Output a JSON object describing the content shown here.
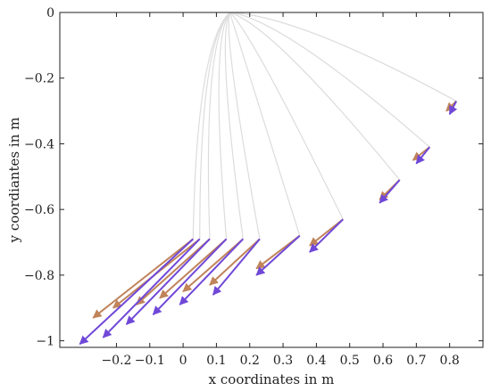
{
  "chart_data": {
    "type": "line",
    "title": "",
    "xlabel": "x coordinates in m",
    "ylabel": "y coordiantes in m",
    "xlim": [
      -0.37,
      0.9
    ],
    "ylim": [
      -1.02,
      0.0
    ],
    "xticks": [
      -0.2,
      -0.1,
      0,
      0.1,
      0.2,
      0.3,
      0.4,
      0.5,
      0.6,
      0.7,
      0.8
    ],
    "xtick_labels": [
      "−0.2",
      "−0.1",
      "0",
      "0.1",
      "0.2",
      "0.3",
      "0.4",
      "0.5",
      "0.6",
      "0.7",
      "0.8"
    ],
    "yticks": [
      0,
      -0.2,
      -0.4,
      -0.6,
      -0.8,
      -1
    ],
    "ytick_labels": [
      "0",
      "−0.2",
      "−0.4",
      "−0.6",
      "−0.8",
      "−1"
    ],
    "grid": false,
    "colors": {
      "curve": "#dcdcdc",
      "arrow_orange": "#c0835a",
      "arrow_purple": "#7048d8",
      "axis": "#222222"
    },
    "curves": [
      {
        "tip": [
          0.82,
          -0.27
        ],
        "control": [
          0.35,
          -0.01
        ],
        "orange_tail": [
          0.79,
          -0.3
        ],
        "purple_tail": [
          0.8,
          -0.31
        ]
      },
      {
        "tip": [
          0.74,
          -0.41
        ],
        "control": [
          0.3,
          -0.02
        ],
        "orange_tail": [
          0.69,
          -0.45
        ],
        "purple_tail": [
          0.7,
          -0.46
        ]
      },
      {
        "tip": [
          0.65,
          -0.51
        ],
        "control": [
          0.27,
          -0.04
        ],
        "orange_tail": [
          0.59,
          -0.57
        ],
        "purple_tail": [
          0.59,
          -0.58
        ]
      },
      {
        "tip": [
          0.48,
          -0.63
        ],
        "control": [
          0.2,
          -0.05
        ],
        "orange_tail": [
          0.38,
          -0.71
        ],
        "purple_tail": [
          0.38,
          -0.73
        ]
      },
      {
        "tip": [
          0.35,
          -0.68
        ],
        "control": [
          0.16,
          -0.06
        ],
        "orange_tail": [
          0.22,
          -0.78
        ],
        "purple_tail": [
          0.22,
          -0.8
        ]
      },
      {
        "tip": [
          0.23,
          -0.69
        ],
        "control": [
          0.12,
          -0.07
        ],
        "orange_tail": [
          0.08,
          -0.83
        ],
        "purple_tail": [
          0.09,
          -0.86
        ]
      },
      {
        "tip": [
          0.18,
          -0.69
        ],
        "control": [
          0.1,
          -0.08
        ],
        "orange_tail": [
          0.0,
          -0.85
        ],
        "purple_tail": [
          -0.01,
          -0.89
        ]
      },
      {
        "tip": [
          0.13,
          -0.69
        ],
        "control": [
          0.08,
          -0.08
        ],
        "orange_tail": [
          -0.07,
          -0.87
        ],
        "purple_tail": [
          -0.09,
          -0.92
        ]
      },
      {
        "tip": [
          0.08,
          -0.69
        ],
        "control": [
          0.06,
          -0.09
        ],
        "orange_tail": [
          -0.14,
          -0.89
        ],
        "purple_tail": [
          -0.17,
          -0.95
        ]
      },
      {
        "tip": [
          0.05,
          -0.69
        ],
        "control": [
          0.05,
          -0.09
        ],
        "orange_tail": [
          -0.21,
          -0.9
        ],
        "purple_tail": [
          -0.24,
          -0.99
        ]
      },
      {
        "tip": [
          0.03,
          -0.69
        ],
        "control": [
          0.04,
          -0.1
        ],
        "orange_tail": [
          -0.27,
          -0.93
        ],
        "purple_tail": [
          -0.31,
          -1.01
        ]
      }
    ],
    "curve_origin": [
      0.14,
      0.0
    ]
  }
}
